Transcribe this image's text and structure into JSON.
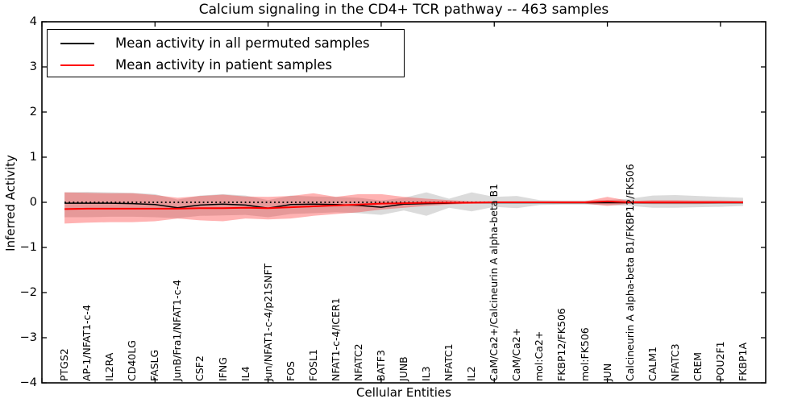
{
  "title": "Calcium signaling in the CD4+ TCR pathway -- 463 samples",
  "axes": {
    "x_label": "Cellular Entities",
    "y_label": "Inferred Activity"
  },
  "legend": {
    "items": [
      {
        "label": "Mean activity in all permuted samples",
        "color": "#000000"
      },
      {
        "label": "Mean activity in patient samples",
        "color": "#ff0000"
      }
    ]
  },
  "chart_data": {
    "type": "line",
    "title": "Calcium signaling in the CD4+ TCR pathway -- 463 samples",
    "xlabel": "Cellular Entities",
    "ylabel": "Inferred Activity",
    "ylim": [
      -4,
      4
    ],
    "xlim": [
      0,
      32
    ],
    "grid": false,
    "legend_position": "upper left",
    "ytick_labels": [
      "4",
      "3",
      "2",
      "1",
      "0",
      "−1",
      "−2",
      "−3",
      "−4"
    ],
    "ytick_values": [
      4,
      3,
      2,
      1,
      0,
      -1,
      -2,
      -3,
      -4
    ],
    "xtick_positions": [
      0,
      5,
      10,
      15,
      20,
      25,
      30
    ],
    "zero_line": {
      "y": 0,
      "style": "dotted",
      "color": "#000000"
    },
    "entities": [
      "PTGS2",
      "AP-1/NFAT1-c-4",
      "IL2RA",
      "CD40LG",
      "FASLG",
      "JunB/Fra1/NFAT1-c-4",
      "CSF2",
      "IFNG",
      "IL4",
      "Jun/NFAT1-c-4/p21SNFT",
      "FOS",
      "FOSL1",
      "NFAT1-c-4/ICER1",
      "NFATC2",
      "BATF3",
      "JUNB",
      "IL3",
      "NFATC1",
      "IL2",
      "CaM/Ca2+/Calcineurin A alpha-beta B1",
      "CaM/Ca2+",
      "mol:Ca2+",
      "FKBP12/FK506",
      "mol:FK506",
      "JUN",
      "Calcineurin A alpha-beta B1/FKBP12/FK506",
      "CALM1",
      "NFATC3",
      "CREM",
      "POU2F1",
      "FKBP1A"
    ],
    "series": [
      {
        "name": "Mean activity in all permuted samples",
        "color": "#000000",
        "width": 1.5,
        "values": [
          -0.02,
          -0.02,
          -0.02,
          -0.03,
          -0.05,
          -0.12,
          -0.06,
          -0.04,
          -0.06,
          -0.13,
          -0.05,
          -0.04,
          -0.05,
          -0.07,
          -0.11,
          -0.04,
          -0.03,
          -0.02,
          -0.01,
          -0.01,
          -0.01,
          -0.01,
          -0.01,
          -0.01,
          -0.01,
          -0.01,
          -0.01,
          -0.01,
          -0.01,
          -0.01,
          -0.01
        ]
      },
      {
        "name": "Mean activity in patient samples",
        "color": "#ff0000",
        "width": 2,
        "values": [
          -0.15,
          -0.14,
          -0.14,
          -0.14,
          -0.14,
          -0.14,
          -0.13,
          -0.13,
          -0.12,
          -0.13,
          -0.11,
          -0.09,
          -0.07,
          -0.05,
          -0.03,
          -0.02,
          -0.01,
          -0.01,
          -0.01,
          0,
          0,
          0,
          0,
          0,
          0.02,
          0,
          0,
          0,
          0,
          0,
          0
        ]
      }
    ],
    "bands": [
      {
        "name": "permuted-samples-std-band",
        "color": "rgba(0,0,0,0.14)",
        "upper": [
          0.22,
          0.23,
          0.22,
          0.21,
          0.18,
          0.06,
          0.15,
          0.18,
          0.15,
          0.05,
          0.15,
          0.13,
          0.12,
          0.1,
          0.04,
          0.1,
          0.22,
          0.08,
          0.22,
          0.12,
          0.14,
          0.05,
          0.04,
          0.04,
          0.05,
          0.08,
          0.15,
          0.16,
          0.14,
          0.12,
          0.1
        ],
        "lower": [
          -0.33,
          -0.33,
          -0.32,
          -0.32,
          -0.33,
          -0.35,
          -0.3,
          -0.29,
          -0.28,
          -0.33,
          -0.26,
          -0.24,
          -0.22,
          -0.24,
          -0.28,
          -0.18,
          -0.3,
          -0.12,
          -0.2,
          -0.1,
          -0.13,
          -0.06,
          -0.05,
          -0.05,
          -0.06,
          -0.08,
          -0.12,
          -0.12,
          -0.11,
          -0.1,
          -0.08
        ]
      },
      {
        "name": "patient-samples-std-band",
        "color": "rgba(255,0,0,0.30)",
        "upper": [
          0.22,
          0.21,
          0.2,
          0.2,
          0.16,
          0.1,
          0.14,
          0.17,
          0.13,
          0.12,
          0.14,
          0.2,
          0.12,
          0.18,
          0.18,
          0.12,
          0.08,
          0.05,
          0.02,
          0.02,
          0.02,
          0.02,
          0.02,
          0.02,
          0.12,
          0.03,
          0.05,
          0.05,
          0.04,
          0.04,
          0.03
        ],
        "lower": [
          -0.47,
          -0.45,
          -0.44,
          -0.44,
          -0.42,
          -0.36,
          -0.4,
          -0.42,
          -0.36,
          -0.38,
          -0.36,
          -0.3,
          -0.26,
          -0.22,
          -0.16,
          -0.12,
          -0.08,
          -0.05,
          -0.03,
          -0.02,
          -0.02,
          -0.02,
          -0.03,
          -0.03,
          -0.08,
          -0.03,
          -0.04,
          -0.04,
          -0.04,
          -0.03,
          -0.03
        ]
      }
    ]
  }
}
